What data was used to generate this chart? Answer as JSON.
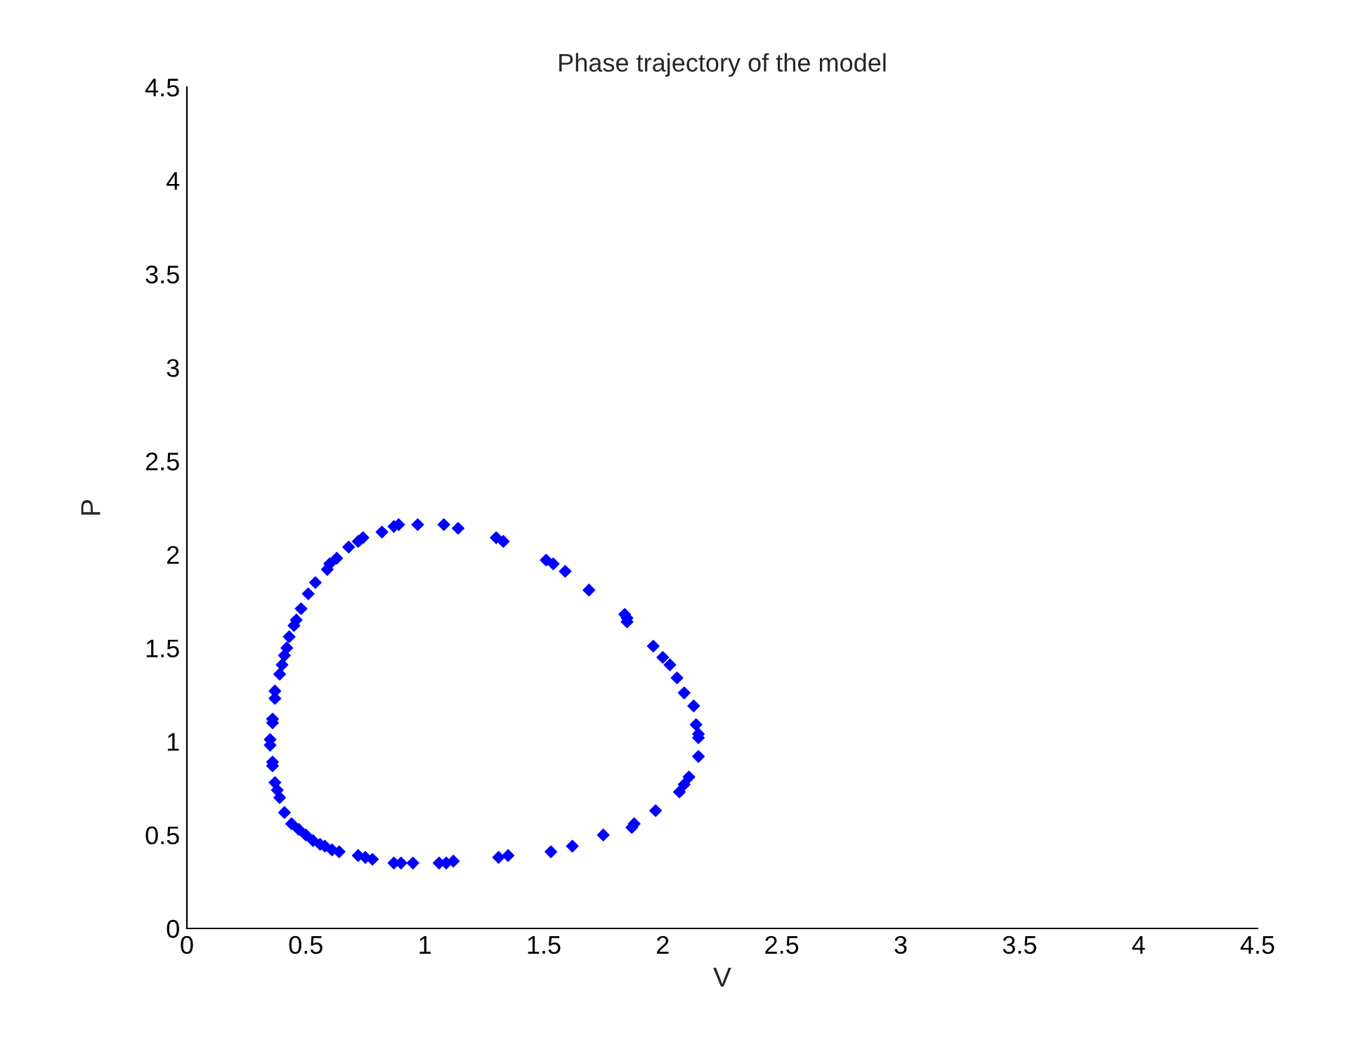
{
  "chart_data": {
    "type": "scatter",
    "title": "Phase trajectory of the model",
    "xlabel": "V",
    "ylabel": "P",
    "x": [
      0.89,
      0.97,
      1.08,
      1.14,
      1.3,
      1.33,
      1.51,
      1.54,
      1.59,
      1.69,
      1.84,
      1.85,
      1.85,
      1.96,
      2.0,
      2.03,
      2.06,
      2.09,
      2.13,
      2.14,
      2.15,
      2.15,
      2.15,
      2.11,
      2.09,
      2.07,
      1.97,
      1.88,
      1.87,
      1.75,
      1.62,
      1.53,
      1.35,
      1.31,
      1.12,
      1.09,
      1.06,
      0.95,
      0.9,
      0.87,
      0.78,
      0.75,
      0.72,
      0.64,
      0.61,
      0.58,
      0.56,
      0.53,
      0.5,
      0.47,
      0.44,
      0.41,
      0.39,
      0.38,
      0.37,
      0.36,
      0.36,
      0.35,
      0.35,
      0.36,
      0.36,
      0.37,
      0.37,
      0.39,
      0.4,
      0.41,
      0.42,
      0.43,
      0.45,
      0.46,
      0.48,
      0.51,
      0.54,
      0.59,
      0.6,
      0.63,
      0.68,
      0.72,
      0.74,
      0.82,
      0.87
    ],
    "series": [
      {
        "color": "#0000ff",
        "values": [
          2.16,
          2.16,
          2.16,
          2.14,
          2.09,
          2.07,
          1.97,
          1.95,
          1.91,
          1.81,
          1.68,
          1.66,
          1.64,
          1.51,
          1.45,
          1.41,
          1.34,
          1.26,
          1.19,
          1.09,
          1.04,
          1.02,
          0.92,
          0.81,
          0.77,
          0.73,
          0.63,
          0.56,
          0.54,
          0.5,
          0.44,
          0.41,
          0.39,
          0.38,
          0.36,
          0.35,
          0.35,
          0.35,
          0.35,
          0.35,
          0.37,
          0.38,
          0.39,
          0.41,
          0.42,
          0.44,
          0.45,
          0.47,
          0.5,
          0.53,
          0.56,
          0.62,
          0.7,
          0.74,
          0.78,
          0.87,
          0.89,
          0.98,
          1.01,
          1.1,
          1.12,
          1.23,
          1.27,
          1.36,
          1.41,
          1.46,
          1.5,
          1.56,
          1.62,
          1.65,
          1.71,
          1.79,
          1.85,
          1.92,
          1.95,
          1.98,
          2.04,
          2.07,
          2.09,
          2.12,
          2.15
        ]
      }
    ],
    "marker": "diamond",
    "xlim": [
      0,
      4.5
    ],
    "xticks": [
      0,
      0.5,
      1,
      1.5,
      2,
      2.5,
      3,
      3.5,
      4,
      4.5
    ],
    "ylim": [
      0,
      4.5
    ],
    "yticks": [
      0,
      0.5,
      1,
      1.5,
      2,
      2.5,
      3,
      3.5,
      4,
      4.5
    ],
    "grid": false
  }
}
